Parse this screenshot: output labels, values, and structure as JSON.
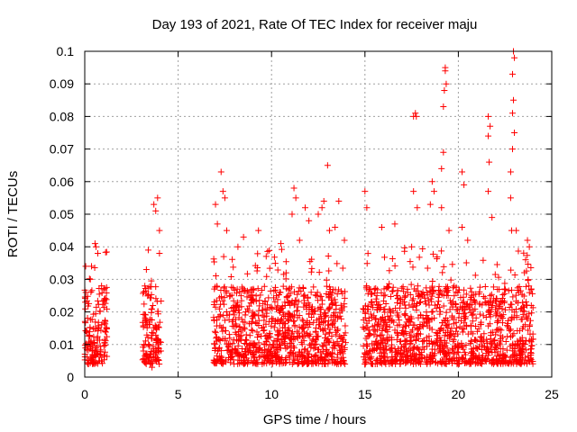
{
  "chart_data": {
    "type": "scatter",
    "title": "Day 193 of 2021, Rate Of TEC Index for receiver maju",
    "xlabel": "GPS time / hours",
    "ylabel": "ROTI / TECUs",
    "xlim": [
      0,
      25
    ],
    "ylim": [
      0,
      0.1
    ],
    "x_ticks": [
      0,
      5,
      10,
      15,
      20,
      25
    ],
    "y_ticks": [
      0,
      0.01,
      0.02,
      0.03,
      0.04,
      0.05,
      0.06,
      0.07,
      0.08,
      0.09,
      0.1
    ],
    "x_tick_labels": [
      "0",
      "5",
      "10",
      "15",
      "20",
      "25"
    ],
    "y_tick_labels": [
      "0",
      "0.01",
      "0.02",
      "0.03",
      "0.04",
      "0.05",
      "0.06",
      "0.07",
      "0.08",
      "0.09",
      "0.1"
    ],
    "grid": true,
    "marker": "+",
    "series": [
      {
        "name": "ROTI",
        "color": "#ff0000",
        "coverage_hours": [
          [
            0,
            1.2
          ],
          [
            3.1,
            4.1
          ],
          [
            6.9,
            14.0
          ],
          [
            14.9,
            24.0
          ]
        ],
        "points": [
          {
            "x": 0.05,
            "y": 0.034
          },
          {
            "x": 0.3,
            "y": 0.03
          },
          {
            "x": 0.55,
            "y": 0.041
          },
          {
            "x": 0.6,
            "y": 0.04
          },
          {
            "x": 0.7,
            "y": 0.038
          },
          {
            "x": 0.9,
            "y": 0.028
          },
          {
            "x": 1.05,
            "y": 0.024
          },
          {
            "x": 0.2,
            "y": 0.004
          },
          {
            "x": 0.8,
            "y": 0.005
          },
          {
            "x": 3.3,
            "y": 0.033
          },
          {
            "x": 3.4,
            "y": 0.039
          },
          {
            "x": 3.7,
            "y": 0.053
          },
          {
            "x": 3.8,
            "y": 0.051
          },
          {
            "x": 3.9,
            "y": 0.055
          },
          {
            "x": 4.0,
            "y": 0.045
          },
          {
            "x": 4.0,
            "y": 0.038
          },
          {
            "x": 3.6,
            "y": 0.003
          },
          {
            "x": 7.0,
            "y": 0.053
          },
          {
            "x": 7.1,
            "y": 0.047
          },
          {
            "x": 7.3,
            "y": 0.063
          },
          {
            "x": 7.4,
            "y": 0.057
          },
          {
            "x": 7.5,
            "y": 0.055
          },
          {
            "x": 7.6,
            "y": 0.045
          },
          {
            "x": 8.2,
            "y": 0.04
          },
          {
            "x": 8.5,
            "y": 0.043
          },
          {
            "x": 9.3,
            "y": 0.045
          },
          {
            "x": 9.5,
            "y": 0.004
          },
          {
            "x": 10.5,
            "y": 0.041
          },
          {
            "x": 11.1,
            "y": 0.05
          },
          {
            "x": 11.2,
            "y": 0.058
          },
          {
            "x": 11.3,
            "y": 0.055
          },
          {
            "x": 11.8,
            "y": 0.052
          },
          {
            "x": 11.5,
            "y": 0.042
          },
          {
            "x": 12.0,
            "y": 0.048
          },
          {
            "x": 12.5,
            "y": 0.05
          },
          {
            "x": 12.7,
            "y": 0.052
          },
          {
            "x": 12.8,
            "y": 0.054
          },
          {
            "x": 13.0,
            "y": 0.065
          },
          {
            "x": 13.1,
            "y": 0.045
          },
          {
            "x": 13.6,
            "y": 0.054
          },
          {
            "x": 13.4,
            "y": 0.046
          },
          {
            "x": 13.9,
            "y": 0.042
          },
          {
            "x": 15.0,
            "y": 0.057
          },
          {
            "x": 15.1,
            "y": 0.052
          },
          {
            "x": 15.9,
            "y": 0.046
          },
          {
            "x": 16.6,
            "y": 0.047
          },
          {
            "x": 17.5,
            "y": 0.04
          },
          {
            "x": 17.6,
            "y": 0.08
          },
          {
            "x": 17.7,
            "y": 0.081
          },
          {
            "x": 17.75,
            "y": 0.08
          },
          {
            "x": 17.6,
            "y": 0.057
          },
          {
            "x": 17.8,
            "y": 0.052
          },
          {
            "x": 18.5,
            "y": 0.053
          },
          {
            "x": 18.6,
            "y": 0.06
          },
          {
            "x": 18.7,
            "y": 0.057
          },
          {
            "x": 19.1,
            "y": 0.064
          },
          {
            "x": 19.2,
            "y": 0.069
          },
          {
            "x": 19.2,
            "y": 0.083
          },
          {
            "x": 19.3,
            "y": 0.094
          },
          {
            "x": 19.35,
            "y": 0.09
          },
          {
            "x": 19.3,
            "y": 0.095
          },
          {
            "x": 19.25,
            "y": 0.088
          },
          {
            "x": 19.1,
            "y": 0.052
          },
          {
            "x": 19.5,
            "y": 0.045
          },
          {
            "x": 20.2,
            "y": 0.063
          },
          {
            "x": 20.3,
            "y": 0.059
          },
          {
            "x": 20.2,
            "y": 0.046
          },
          {
            "x": 20.5,
            "y": 0.042
          },
          {
            "x": 21.6,
            "y": 0.08
          },
          {
            "x": 21.6,
            "y": 0.074
          },
          {
            "x": 21.65,
            "y": 0.066
          },
          {
            "x": 21.7,
            "y": 0.077
          },
          {
            "x": 21.6,
            "y": 0.057
          },
          {
            "x": 21.8,
            "y": 0.049
          },
          {
            "x": 22.8,
            "y": 0.055
          },
          {
            "x": 22.8,
            "y": 0.063
          },
          {
            "x": 22.9,
            "y": 0.07
          },
          {
            "x": 22.9,
            "y": 0.081
          },
          {
            "x": 22.95,
            "y": 0.085
          },
          {
            "x": 22.9,
            "y": 0.093
          },
          {
            "x": 22.95,
            "y": 0.1
          },
          {
            "x": 23.0,
            "y": 0.098
          },
          {
            "x": 23.0,
            "y": 0.075
          },
          {
            "x": 22.85,
            "y": 0.045
          },
          {
            "x": 23.1,
            "y": 0.045
          },
          {
            "x": 23.6,
            "y": 0.036
          },
          {
            "x": 23.7,
            "y": 0.042
          },
          {
            "x": 23.8,
            "y": 0.04
          },
          {
            "x": 23.6,
            "y": 0.005
          }
        ]
      }
    ]
  }
}
